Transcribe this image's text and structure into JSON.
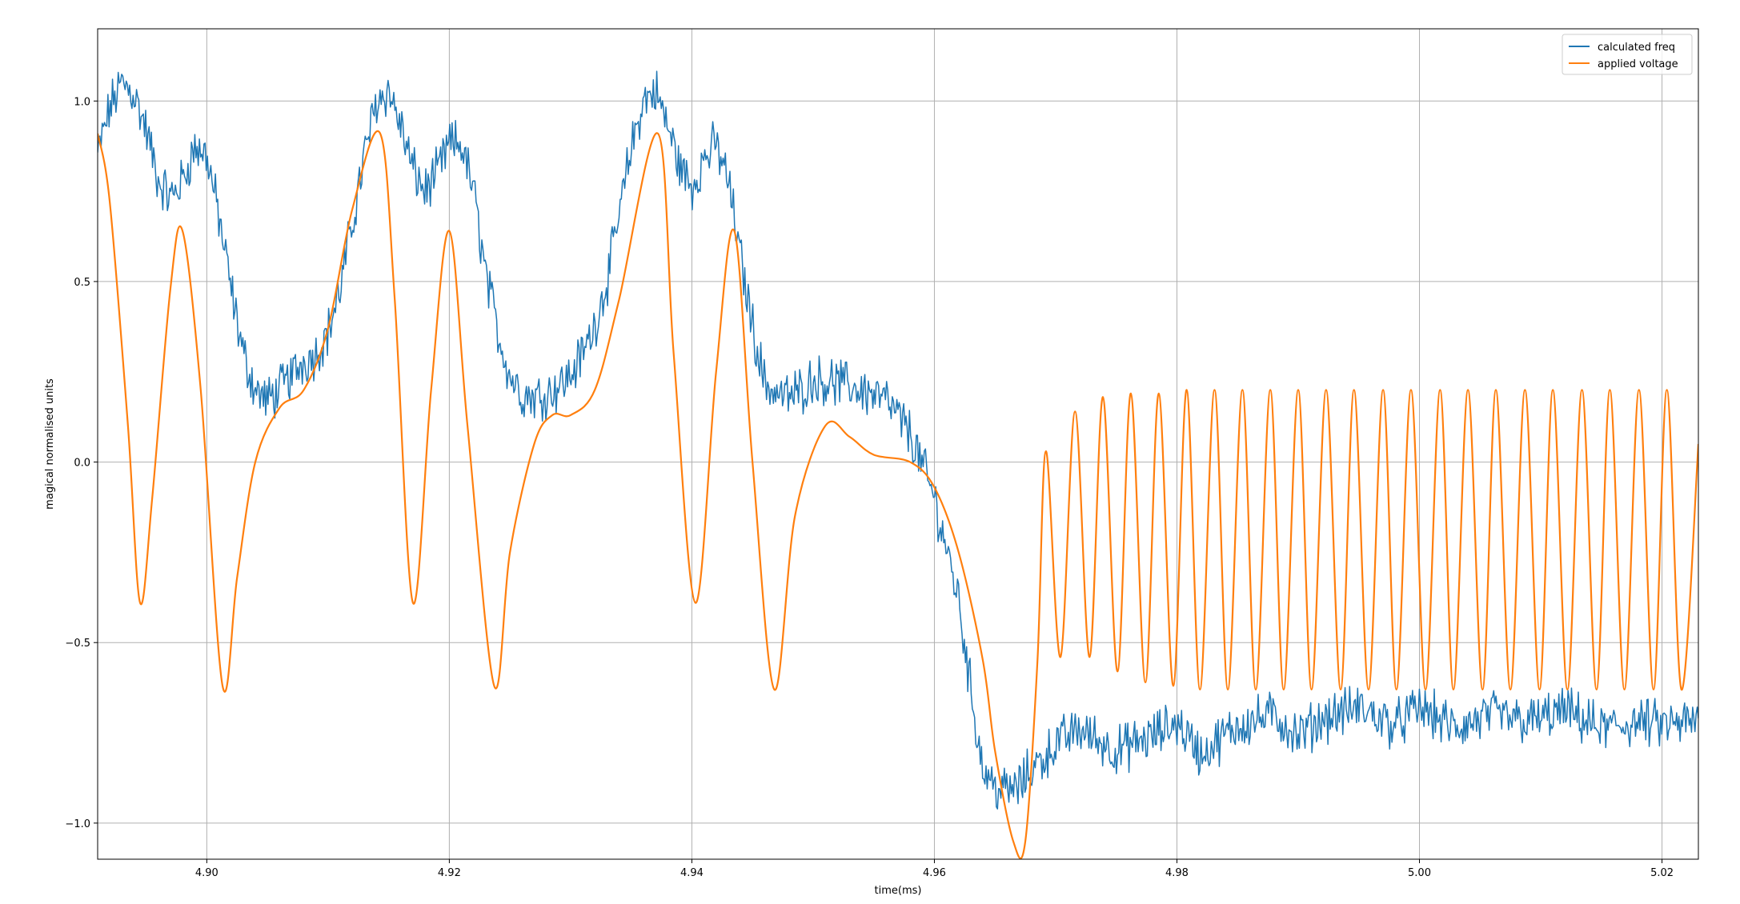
{
  "chart_data": {
    "type": "line",
    "title": "",
    "xlabel": "time(ms)",
    "ylabel": "magical normalised units",
    "xlim": [
      4.891,
      5.023
    ],
    "ylim": [
      -1.1,
      1.2
    ],
    "grid": true,
    "legend_position": "top-right",
    "x_ticks": [
      4.9,
      4.92,
      4.94,
      4.96,
      4.98,
      5.0,
      5.02
    ],
    "x_tick_labels": [
      "4.90",
      "4.92",
      "4.94",
      "4.96",
      "4.98",
      "5.00",
      "5.02"
    ],
    "y_ticks": [
      -1.0,
      -0.5,
      0.0,
      0.5,
      1.0
    ],
    "y_tick_labels": [
      "−1.0",
      "−0.5",
      "0.0",
      "0.5",
      "1.0"
    ],
    "series": [
      {
        "name": "calculated freq",
        "color": "#1f77b4",
        "noisy": true,
        "x": [
          4.891,
          4.892,
          4.893,
          4.894,
          4.895,
          4.896,
          4.897,
          4.898,
          4.899,
          4.9,
          4.901,
          4.902,
          4.903,
          4.904,
          4.905,
          4.906,
          4.907,
          4.908,
          4.909,
          4.91,
          4.911,
          4.912,
          4.913,
          4.914,
          4.915,
          4.916,
          4.917,
          4.918,
          4.919,
          4.92,
          4.921,
          4.922,
          4.923,
          4.924,
          4.925,
          4.926,
          4.927,
          4.928,
          4.929,
          4.93,
          4.931,
          4.932,
          4.933,
          4.934,
          4.935,
          4.936,
          4.937,
          4.938,
          4.939,
          4.94,
          4.941,
          4.942,
          4.943,
          4.944,
          4.945,
          4.946,
          4.947,
          4.948,
          4.949,
          4.95,
          4.952,
          4.954,
          4.956,
          4.958,
          4.96,
          4.962,
          4.963,
          4.964,
          4.965,
          4.966,
          4.967,
          4.968,
          4.969,
          4.97,
          4.972,
          4.975,
          4.978,
          4.98,
          4.982,
          4.985,
          4.988,
          4.99,
          4.992,
          4.995,
          4.998,
          5.0,
          5.003,
          5.006,
          5.009,
          5.012,
          5.015,
          5.018,
          5.02,
          5.023
        ],
        "y": [
          0.85,
          0.98,
          1.05,
          1.02,
          0.92,
          0.78,
          0.73,
          0.78,
          0.87,
          0.85,
          0.68,
          0.48,
          0.3,
          0.2,
          0.17,
          0.2,
          0.24,
          0.28,
          0.3,
          0.36,
          0.48,
          0.66,
          0.85,
          1.0,
          1.03,
          0.93,
          0.81,
          0.75,
          0.8,
          0.88,
          0.88,
          0.75,
          0.52,
          0.36,
          0.24,
          0.19,
          0.18,
          0.19,
          0.21,
          0.24,
          0.3,
          0.38,
          0.5,
          0.68,
          0.87,
          1.0,
          1.03,
          0.93,
          0.82,
          0.76,
          0.84,
          0.88,
          0.78,
          0.57,
          0.38,
          0.22,
          0.19,
          0.18,
          0.2,
          0.23,
          0.22,
          0.2,
          0.17,
          0.08,
          -0.1,
          -0.38,
          -0.63,
          -0.85,
          -0.9,
          -0.91,
          -0.9,
          -0.85,
          -0.82,
          -0.78,
          -0.74,
          -0.8,
          -0.76,
          -0.72,
          -0.81,
          -0.73,
          -0.7,
          -0.76,
          -0.71,
          -0.68,
          -0.73,
          -0.68,
          -0.74,
          -0.7,
          -0.72,
          -0.69,
          -0.74,
          -0.72,
          -0.73,
          -0.72
        ]
      },
      {
        "name": "applied voltage",
        "color": "#ff7f0e",
        "noisy": false,
        "x": [
          4.891,
          4.892,
          4.8935,
          4.8945,
          4.8955,
          4.897,
          4.898,
          4.8995,
          4.9013,
          4.9025,
          4.904,
          4.906,
          4.908,
          4.91,
          4.912,
          4.9143,
          4.9155,
          4.917,
          4.9185,
          4.92,
          4.9215,
          4.9237,
          4.925,
          4.927,
          4.9285,
          4.93,
          4.932,
          4.934,
          4.9372,
          4.9385,
          4.9403,
          4.942,
          4.9435,
          4.945,
          4.9468,
          4.9485,
          4.951,
          4.953,
          4.955,
          4.958,
          4.96,
          4.962,
          4.964,
          4.965,
          4.9665,
          4.9675,
          4.9685,
          4.9692,
          4.9704,
          4.9716,
          4.9728,
          4.9739,
          4.9751,
          4.9762,
          4.9774,
          4.9785,
          4.9797,
          4.9808,
          4.9819,
          4.9831,
          4.9842,
          4.9854,
          4.9865,
          4.9877,
          4.9888,
          4.99,
          4.9911,
          4.9923,
          4.9935,
          4.9946,
          4.9958,
          4.997,
          4.9981,
          4.9993,
          5.0005,
          5.0017,
          5.0028,
          5.004,
          5.0052,
          5.0063,
          5.0075,
          5.0087,
          5.0099,
          5.011,
          5.0122,
          5.0134,
          5.0146,
          5.0157,
          5.0169,
          5.0181,
          5.0193,
          5.0204,
          5.0216,
          5.023
        ],
        "y": [
          0.91,
          0.72,
          0.1,
          -0.39,
          -0.1,
          0.48,
          0.64,
          0.2,
          -0.62,
          -0.32,
          0.0,
          0.15,
          0.2,
          0.37,
          0.7,
          0.91,
          0.45,
          -0.39,
          0.2,
          0.64,
          0.1,
          -0.62,
          -0.25,
          0.05,
          0.13,
          0.13,
          0.2,
          0.45,
          0.91,
          0.3,
          -0.39,
          0.25,
          0.64,
          0.0,
          -0.63,
          -0.15,
          0.1,
          0.07,
          0.02,
          0.0,
          -0.07,
          -0.25,
          -0.55,
          -0.8,
          -1.05,
          -1.05,
          -0.55,
          0.03,
          -0.54,
          0.14,
          -0.54,
          0.18,
          -0.58,
          0.19,
          -0.61,
          0.19,
          -0.62,
          0.2,
          -0.63,
          0.2,
          -0.63,
          0.2,
          -0.63,
          0.2,
          -0.63,
          0.2,
          -0.63,
          0.2,
          -0.63,
          0.2,
          -0.63,
          0.2,
          -0.63,
          0.2,
          -0.63,
          0.2,
          -0.63,
          0.2,
          -0.63,
          0.2,
          -0.63,
          0.2,
          -0.63,
          0.2,
          -0.63,
          0.2,
          -0.63,
          0.2,
          -0.63,
          0.2,
          -0.63,
          0.2,
          -0.63,
          0.05
        ]
      }
    ]
  }
}
